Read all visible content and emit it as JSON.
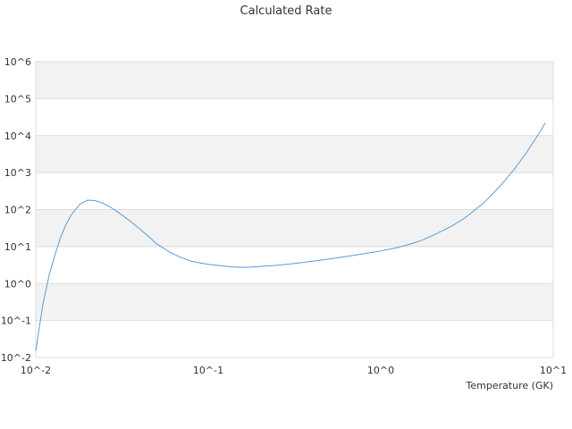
{
  "chart_data": {
    "type": "line",
    "title": "Calculated Rate",
    "xlabel": "Temperature (GK)",
    "ylabel": "",
    "x_scale": "log",
    "y_scale": "log",
    "xlim": [
      0.01,
      10
    ],
    "ylim": [
      0.01,
      1000000
    ],
    "grid": true,
    "legend": "none",
    "x_ticks": [
      "10^-2",
      "10^-1",
      "10^0",
      "10^1"
    ],
    "y_ticks": [
      "10^6",
      "10^5",
      "10^4",
      "10^3",
      "10^2",
      "10^1",
      "10^0",
      "10^-1",
      "10^-2"
    ],
    "series": [
      {
        "color": "#5b9bd5",
        "x": [
          0.01,
          0.011,
          0.012,
          0.013,
          0.014,
          0.015,
          0.016,
          0.018,
          0.02,
          0.022,
          0.024,
          0.026,
          0.028,
          0.03,
          0.035,
          0.04,
          0.045,
          0.05,
          0.06,
          0.07,
          0.08,
          0.09,
          0.1,
          0.12,
          0.14,
          0.16,
          0.18,
          0.2,
          0.25,
          0.3,
          0.35,
          0.4,
          0.5,
          0.6,
          0.7,
          0.8,
          0.9,
          1.0,
          1.2,
          1.4,
          1.6,
          1.8,
          2.0,
          2.5,
          3.0,
          3.5,
          4.0,
          4.5,
          5.0,
          6.0,
          7.0,
          8.0,
          9.0
        ],
        "y": [
          0.015,
          0.28,
          1.8,
          6.5,
          19,
          40,
          70,
          140,
          180,
          175,
          155,
          130,
          105,
          85,
          50,
          30,
          19,
          12,
          7,
          5,
          4,
          3.6,
          3.3,
          3.0,
          2.8,
          2.75,
          2.8,
          2.9,
          3.1,
          3.4,
          3.7,
          4.0,
          4.6,
          5.2,
          5.8,
          6.4,
          7.0,
          7.6,
          9.0,
          10.8,
          13,
          16,
          20,
          33,
          55,
          95,
          160,
          280,
          470,
          1300,
          3500,
          9000,
          22000
        ]
      }
    ]
  }
}
